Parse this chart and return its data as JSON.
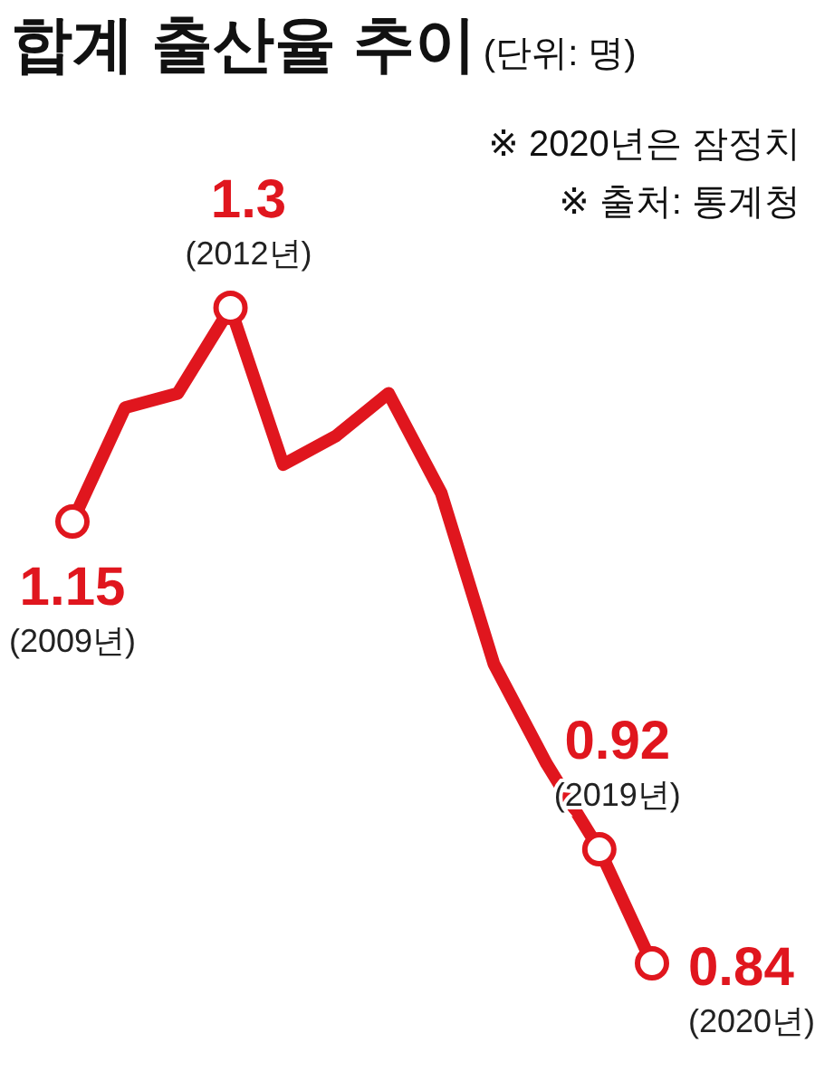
{
  "chart_data": {
    "type": "line",
    "title": "합계 출산율 추이",
    "subtitle": "(단위: 명)",
    "categories": [
      null,
      null,
      null,
      null,
      null,
      null,
      null,
      null,
      null,
      null,
      null,
      null
    ],
    "series": [
      {
        "color": "#e0161e",
        "values": [
          1.15,
          1.23,
          1.24,
          1.3,
          1.19,
          1.21,
          1.24,
          1.17,
          1.05,
          0.98,
          0.92,
          0.84
        ],
        "value_labels": [
          "1.15",
          null,
          null,
          "1.3",
          null,
          null,
          null,
          null,
          null,
          null,
          "0.92",
          "0.84"
        ]
      }
    ],
    "annotations": [
      "(2009년)",
      "(2012년)",
      "(2019년)",
      "(2020년)",
      "※ 2020년은 잠정치",
      "※ 출처: 통계청"
    ]
  }
}
